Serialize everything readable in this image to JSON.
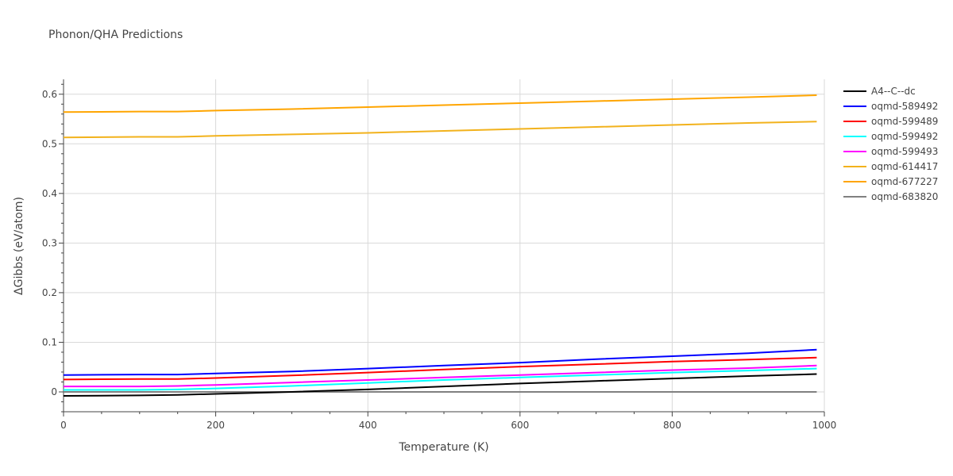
{
  "chart_data": {
    "type": "line",
    "title": "Phonon/QHA Predictions",
    "xlabel": "Temperature (K)",
    "ylabel": "ΔGibbs (eV/atom)",
    "xlim": [
      0,
      1000
    ],
    "ylim": [
      -0.04,
      0.63
    ],
    "xticks": [
      0,
      200,
      400,
      600,
      800,
      1000
    ],
    "yticks": [
      0,
      0.1,
      0.2,
      0.3,
      0.4,
      0.5,
      0.6
    ],
    "xtick_labels": [
      "0",
      "200",
      "400",
      "600",
      "800",
      "1000"
    ],
    "ytick_labels": [
      "0",
      "0.1",
      "0.2",
      "0.3",
      "0.4",
      "0.5",
      "0.6"
    ],
    "grid": true,
    "legend_position": "top-right",
    "x": [
      0,
      100,
      150,
      200,
      300,
      400,
      500,
      600,
      700,
      800,
      900,
      990
    ],
    "series": [
      {
        "name": "A4--C--dc",
        "color": "#000000",
        "values": [
          -0.008,
          -0.007,
          -0.006,
          -0.004,
          0.0,
          0.005,
          0.011,
          0.017,
          0.022,
          0.027,
          0.032,
          0.036
        ]
      },
      {
        "name": "oqmd-589492",
        "color": "#0000ff",
        "values": [
          0.034,
          0.035,
          0.035,
          0.037,
          0.041,
          0.047,
          0.053,
          0.059,
          0.066,
          0.072,
          0.078,
          0.085
        ]
      },
      {
        "name": "oqmd-599489",
        "color": "#ff0000",
        "values": [
          0.025,
          0.026,
          0.026,
          0.028,
          0.033,
          0.039,
          0.045,
          0.051,
          0.056,
          0.061,
          0.065,
          0.069
        ]
      },
      {
        "name": "oqmd-599492",
        "color": "#00ffff",
        "values": [
          0.004,
          0.004,
          0.005,
          0.007,
          0.012,
          0.018,
          0.024,
          0.029,
          0.034,
          0.039,
          0.043,
          0.047
        ]
      },
      {
        "name": "oqmd-599493",
        "color": "#ff00ff",
        "values": [
          0.011,
          0.011,
          0.012,
          0.014,
          0.019,
          0.024,
          0.029,
          0.034,
          0.039,
          0.044,
          0.048,
          0.053
        ]
      },
      {
        "name": "oqmd-614417",
        "color": "#f2b21c",
        "values": [
          0.513,
          0.514,
          0.514,
          0.516,
          0.519,
          0.522,
          0.526,
          0.53,
          0.534,
          0.538,
          0.542,
          0.545
        ]
      },
      {
        "name": "oqmd-677227",
        "color": "#ffa500",
        "values": [
          0.564,
          0.565,
          0.565,
          0.567,
          0.57,
          0.574,
          0.578,
          0.582,
          0.586,
          0.59,
          0.594,
          0.598
        ]
      },
      {
        "name": "oqmd-683820",
        "color": "#808080",
        "values": [
          0.0,
          0.0,
          0.0,
          0.0,
          0.0,
          0.0,
          0.0,
          0.0,
          0.0,
          0.0,
          0.0,
          0.0
        ]
      }
    ]
  }
}
